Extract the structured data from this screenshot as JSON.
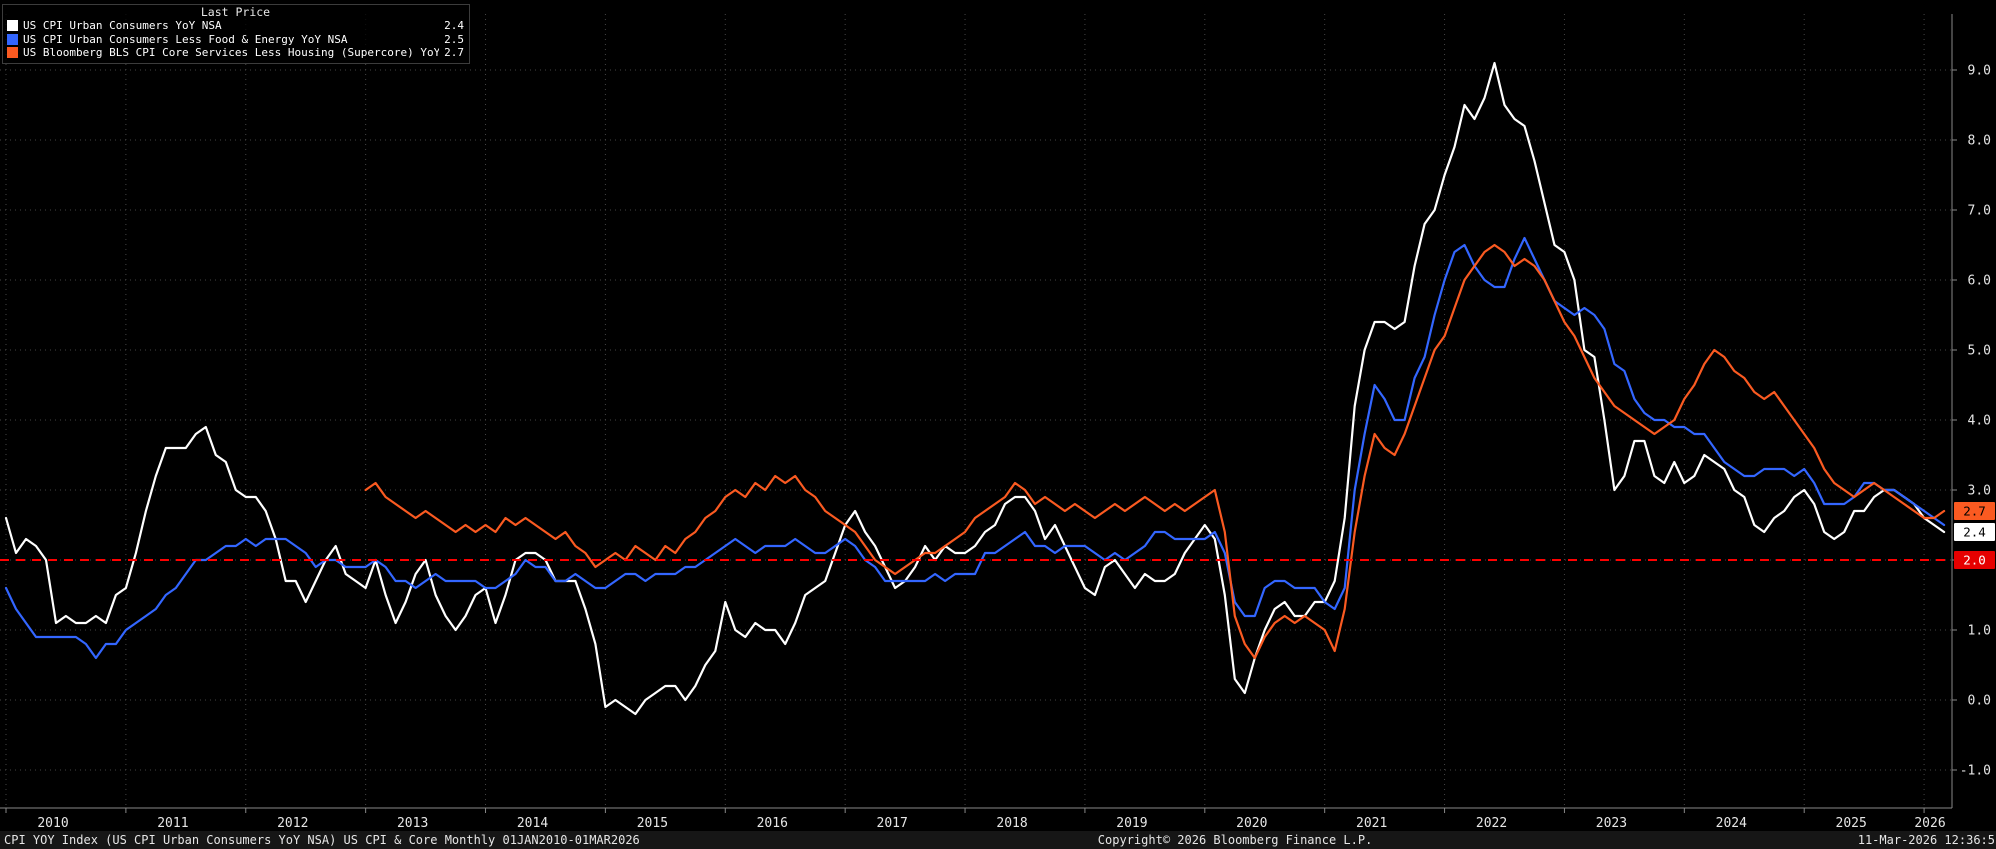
{
  "legend": {
    "title": "Last Price",
    "items": [
      {
        "label": "US CPI Urban Consumers YoY NSA",
        "value": "2.4",
        "color": "#ffffff"
      },
      {
        "label": "US CPI Urban Consumers Less Food & Energy YoY NSA",
        "value": "2.5",
        "color": "#3366ff"
      },
      {
        "label": "US Bloomberg BLS CPI Core Services Less Housing (Supercore) YoY",
        "value": "2.7",
        "color": "#fa5a21"
      }
    ]
  },
  "footer": {
    "left": "CPI YOY Index (US CPI Urban Consumers YoY NSA) US CPI & Core Monthly 01JAN2010-01MAR2026",
    "copyright": "Copyright© 2026 Bloomberg Finance L.P.",
    "timestamp": "11-Mar-2026 12:36:5"
  },
  "colors": {
    "background": "#000000",
    "grid": "#454545",
    "axis_text": "#e6e6e6",
    "axis_line": "#888888",
    "footer_bg": "#161616"
  },
  "chart_data": {
    "type": "line",
    "title": "CPI YOY Index — US CPI & Core Monthly",
    "x_start": "2010-01",
    "x_end": "2026-03",
    "x_frequency": "monthly",
    "x_tick_years": [
      "2010",
      "2011",
      "2012",
      "2013",
      "2014",
      "2015",
      "2016",
      "2017",
      "2018",
      "2019",
      "2020",
      "2021",
      "2022",
      "2023",
      "2024",
      "2025",
      "2026"
    ],
    "y_ticks": [
      -1.0,
      0.0,
      1.0,
      2.0,
      3.0,
      4.0,
      5.0,
      6.0,
      7.0,
      8.0,
      9.0
    ],
    "ylim": [
      -1.6,
      9.8
    ],
    "grid": true,
    "legend_position": "top-left",
    "ref_line": {
      "value": 2.0,
      "label": "2.0",
      "color": "#ff0000",
      "style": "dashed"
    },
    "badges": [
      {
        "value": 2.7,
        "label": "2.7",
        "bg": "#fa5a21",
        "fg": "#000000"
      },
      {
        "value": 2.4,
        "label": "2.4",
        "bg": "#ffffff",
        "fg": "#000000"
      },
      {
        "value": 2.0,
        "label": "2.0",
        "bg": "#e60000",
        "fg": "#ffffff"
      }
    ],
    "series": [
      {
        "name": "US CPI Urban Consumers YoY NSA",
        "color": "#ffffff",
        "last_price": 2.4,
        "start_month_index": 0,
        "values": [
          2.6,
          2.1,
          2.3,
          2.2,
          2.0,
          1.1,
          1.2,
          1.1,
          1.1,
          1.2,
          1.1,
          1.5,
          1.6,
          2.1,
          2.7,
          3.2,
          3.6,
          3.6,
          3.6,
          3.8,
          3.9,
          3.5,
          3.4,
          3.0,
          2.9,
          2.9,
          2.7,
          2.3,
          1.7,
          1.7,
          1.4,
          1.7,
          2.0,
          2.2,
          1.8,
          1.7,
          1.6,
          2.0,
          1.5,
          1.1,
          1.4,
          1.8,
          2.0,
          1.5,
          1.2,
          1.0,
          1.2,
          1.5,
          1.6,
          1.1,
          1.5,
          2.0,
          2.1,
          2.1,
          2.0,
          1.7,
          1.7,
          1.7,
          1.3,
          0.8,
          -0.1,
          0.0,
          -0.1,
          -0.2,
          0.0,
          0.1,
          0.2,
          0.2,
          0.0,
          0.2,
          0.5,
          0.7,
          1.4,
          1.0,
          0.9,
          1.1,
          1.0,
          1.0,
          0.8,
          1.1,
          1.5,
          1.6,
          1.7,
          2.1,
          2.5,
          2.7,
          2.4,
          2.2,
          1.9,
          1.6,
          1.7,
          1.9,
          2.2,
          2.0,
          2.2,
          2.1,
          2.1,
          2.2,
          2.4,
          2.5,
          2.8,
          2.9,
          2.9,
          2.7,
          2.3,
          2.5,
          2.2,
          1.9,
          1.6,
          1.5,
          1.9,
          2.0,
          1.8,
          1.6,
          1.8,
          1.7,
          1.7,
          1.8,
          2.1,
          2.3,
          2.5,
          2.3,
          1.5,
          0.3,
          0.1,
          0.6,
          1.0,
          1.3,
          1.4,
          1.2,
          1.2,
          1.4,
          1.4,
          1.7,
          2.6,
          4.2,
          5.0,
          5.4,
          5.4,
          5.3,
          5.4,
          6.2,
          6.8,
          7.0,
          7.5,
          7.9,
          8.5,
          8.3,
          8.6,
          9.1,
          8.5,
          8.3,
          8.2,
          7.7,
          7.1,
          6.5,
          6.4,
          6.0,
          5.0,
          4.9,
          4.0,
          3.0,
          3.2,
          3.7,
          3.7,
          3.2,
          3.1,
          3.4,
          3.1,
          3.2,
          3.5,
          3.4,
          3.3,
          3.0,
          2.9,
          2.5,
          2.4,
          2.6,
          2.7,
          2.9,
          3.0,
          2.8,
          2.4,
          2.3,
          2.4,
          2.7,
          2.7,
          2.9,
          3.0,
          3.0,
          2.9,
          2.8,
          2.6,
          2.5,
          2.4
        ]
      },
      {
        "name": "US CPI Urban Consumers Less Food & Energy YoY NSA",
        "color": "#3366ff",
        "last_price": 2.5,
        "start_month_index": 0,
        "values": [
          1.6,
          1.3,
          1.1,
          0.9,
          0.9,
          0.9,
          0.9,
          0.9,
          0.8,
          0.6,
          0.8,
          0.8,
          1.0,
          1.1,
          1.2,
          1.3,
          1.5,
          1.6,
          1.8,
          2.0,
          2.0,
          2.1,
          2.2,
          2.2,
          2.3,
          2.2,
          2.3,
          2.3,
          2.3,
          2.2,
          2.1,
          1.9,
          2.0,
          2.0,
          1.9,
          1.9,
          1.9,
          2.0,
          1.9,
          1.7,
          1.7,
          1.6,
          1.7,
          1.8,
          1.7,
          1.7,
          1.7,
          1.7,
          1.6,
          1.6,
          1.7,
          1.8,
          2.0,
          1.9,
          1.9,
          1.7,
          1.7,
          1.8,
          1.7,
          1.6,
          1.6,
          1.7,
          1.8,
          1.8,
          1.7,
          1.8,
          1.8,
          1.8,
          1.9,
          1.9,
          2.0,
          2.1,
          2.2,
          2.3,
          2.2,
          2.1,
          2.2,
          2.2,
          2.2,
          2.3,
          2.2,
          2.1,
          2.1,
          2.2,
          2.3,
          2.2,
          2.0,
          1.9,
          1.7,
          1.7,
          1.7,
          1.7,
          1.7,
          1.8,
          1.7,
          1.8,
          1.8,
          1.8,
          2.1,
          2.1,
          2.2,
          2.3,
          2.4,
          2.2,
          2.2,
          2.1,
          2.2,
          2.2,
          2.2,
          2.1,
          2.0,
          2.1,
          2.0,
          2.1,
          2.2,
          2.4,
          2.4,
          2.3,
          2.3,
          2.3,
          2.3,
          2.4,
          2.1,
          1.4,
          1.2,
          1.2,
          1.6,
          1.7,
          1.7,
          1.6,
          1.6,
          1.6,
          1.4,
          1.3,
          1.6,
          3.0,
          3.8,
          4.5,
          4.3,
          4.0,
          4.0,
          4.6,
          4.9,
          5.5,
          6.0,
          6.4,
          6.5,
          6.2,
          6.0,
          5.9,
          5.9,
          6.3,
          6.6,
          6.3,
          6.0,
          5.7,
          5.6,
          5.5,
          5.6,
          5.5,
          5.3,
          4.8,
          4.7,
          4.3,
          4.1,
          4.0,
          4.0,
          3.9,
          3.9,
          3.8,
          3.8,
          3.6,
          3.4,
          3.3,
          3.2,
          3.2,
          3.3,
          3.3,
          3.3,
          3.2,
          3.3,
          3.1,
          2.8,
          2.8,
          2.8,
          2.9,
          3.1,
          3.1,
          3.0,
          3.0,
          2.9,
          2.8,
          2.7,
          2.6,
          2.5
        ]
      },
      {
        "name": "US Bloomberg BLS CPI Core Services Less Housing (Supercore) YoY",
        "color": "#fa5a21",
        "last_price": 2.7,
        "start_month_index": 36,
        "values": [
          3.0,
          3.1,
          2.9,
          2.8,
          2.7,
          2.6,
          2.7,
          2.6,
          2.5,
          2.4,
          2.5,
          2.4,
          2.5,
          2.4,
          2.6,
          2.5,
          2.6,
          2.5,
          2.4,
          2.3,
          2.4,
          2.2,
          2.1,
          1.9,
          2.0,
          2.1,
          2.0,
          2.2,
          2.1,
          2.0,
          2.2,
          2.1,
          2.3,
          2.4,
          2.6,
          2.7,
          2.9,
          3.0,
          2.9,
          3.1,
          3.0,
          3.2,
          3.1,
          3.2,
          3.0,
          2.9,
          2.7,
          2.6,
          2.5,
          2.4,
          2.2,
          2.0,
          1.9,
          1.8,
          1.9,
          2.0,
          2.1,
          2.1,
          2.2,
          2.3,
          2.4,
          2.6,
          2.7,
          2.8,
          2.9,
          3.1,
          3.0,
          2.8,
          2.9,
          2.8,
          2.7,
          2.8,
          2.7,
          2.6,
          2.7,
          2.8,
          2.7,
          2.8,
          2.9,
          2.8,
          2.7,
          2.8,
          2.7,
          2.8,
          2.9,
          3.0,
          2.4,
          1.2,
          0.8,
          0.6,
          0.9,
          1.1,
          1.2,
          1.1,
          1.2,
          1.1,
          1.0,
          0.7,
          1.3,
          2.4,
          3.2,
          3.8,
          3.6,
          3.5,
          3.8,
          4.2,
          4.6,
          5.0,
          5.2,
          5.6,
          6.0,
          6.2,
          6.4,
          6.5,
          6.4,
          6.2,
          6.3,
          6.2,
          6.0,
          5.7,
          5.4,
          5.2,
          4.9,
          4.6,
          4.4,
          4.2,
          4.1,
          4.0,
          3.9,
          3.8,
          3.9,
          4.0,
          4.3,
          4.5,
          4.8,
          5.0,
          4.9,
          4.7,
          4.6,
          4.4,
          4.3,
          4.4,
          4.2,
          4.0,
          3.8,
          3.6,
          3.3,
          3.1,
          3.0,
          2.9,
          3.0,
          3.1,
          3.0,
          2.9,
          2.8,
          2.7,
          2.6,
          2.6,
          2.7
        ]
      }
    ]
  }
}
